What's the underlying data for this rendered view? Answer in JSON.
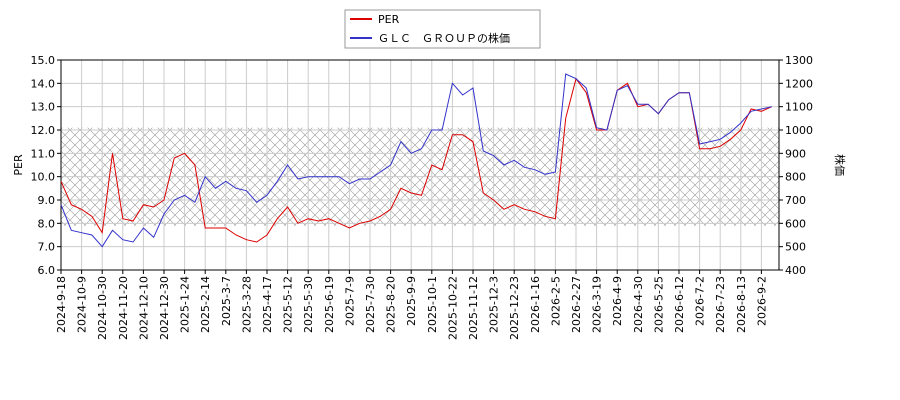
{
  "chart_data": {
    "type": "line",
    "y_label": "PER",
    "y2_label": "株価",
    "categories": [
      "2024-9-18",
      null,
      "2024-10-9",
      null,
      "2024-10-30",
      null,
      "2024-11-20",
      null,
      "2024-12-10",
      null,
      "2024-12-30",
      null,
      "2025-1-24",
      null,
      "2025-2-14",
      null,
      "2025-3-7",
      null,
      "2025-3-28",
      null,
      "2025-4-17",
      null,
      "2025-5-12",
      null,
      "2025-5-30",
      null,
      "2025-6-19",
      null,
      "2025-7-9",
      null,
      "2025-7-30",
      null,
      "2025-8-20",
      null,
      "2025-9-9",
      null,
      "2025-10-1",
      null,
      "2025-10-22",
      null,
      "2025-11-12",
      null,
      "2025-12-3",
      null,
      "2025-12-23",
      null,
      "2026-1-16",
      null,
      "2026-2-5",
      null,
      "2026-2-27",
      null,
      "2026-3-19",
      null,
      "2026-4-9",
      null,
      "2026-4-30",
      null,
      "2026-5-25",
      null,
      "2026-6-12",
      null,
      "2026-7-2",
      null,
      "2026-7-23",
      null,
      "2026-8-13",
      null,
      "2026-9-2",
      null
    ],
    "series": [
      {
        "name": "PER",
        "color": "#dd0000",
        "axis": "y",
        "values": [
          9.8,
          8.8,
          8.6,
          8.3,
          7.6,
          11.0,
          8.2,
          8.1,
          8.8,
          8.7,
          9.0,
          10.8,
          11.0,
          10.5,
          7.8,
          7.8,
          7.8,
          7.5,
          7.3,
          7.2,
          7.5,
          8.2,
          8.7,
          8.0,
          8.2,
          8.1,
          8.2,
          8.0,
          7.8,
          8.0,
          8.1,
          8.3,
          8.6,
          9.5,
          9.3,
          9.2,
          10.5,
          10.3,
          11.8,
          11.8,
          11.5,
          9.3,
          9.0,
          8.6,
          8.8,
          8.6,
          8.5,
          8.3,
          8.2,
          12.5,
          14.2,
          13.6,
          12.0,
          12.0,
          13.7,
          14.0,
          13.0,
          13.1,
          12.7,
          13.3,
          13.6,
          13.6,
          11.2,
          11.2,
          11.3,
          11.6,
          12.0,
          12.9,
          12.8,
          13.0
        ]
      },
      {
        "name": "ＧＬＣ　ＧＲＯＵＰの株価",
        "color": "#3333cc",
        "axis": "y2",
        "values": [
          680,
          570,
          560,
          550,
          500,
          570,
          530,
          520,
          580,
          540,
          640,
          700,
          720,
          690,
          800,
          750,
          780,
          750,
          740,
          690,
          720,
          780,
          850,
          790,
          800,
          800,
          800,
          800,
          770,
          790,
          790,
          820,
          850,
          950,
          900,
          920,
          1000,
          1000,
          1200,
          1150,
          1180,
          910,
          890,
          850,
          870,
          840,
          830,
          810,
          820,
          1240,
          1220,
          1180,
          1010,
          1000,
          1170,
          1190,
          1110,
          1110,
          1070,
          1130,
          1160,
          1160,
          940,
          950,
          960,
          990,
          1030,
          1080,
          1090,
          1100
        ]
      }
    ],
    "ylim": [
      6,
      15
    ],
    "yticks": [
      {
        "value": 6,
        "label": "6.0"
      },
      {
        "value": 7,
        "label": "7.0"
      },
      {
        "value": 8,
        "label": "8.0"
      },
      {
        "value": 9,
        "label": "9.0"
      },
      {
        "value": 10,
        "label": "10.0"
      },
      {
        "value": 11,
        "label": "11.0"
      },
      {
        "value": 12,
        "label": "12.0"
      },
      {
        "value": 13,
        "label": "13.0"
      },
      {
        "value": 14,
        "label": "14.0"
      },
      {
        "value": 15,
        "label": "15.0"
      }
    ],
    "y2lim": [
      400,
      1300
    ],
    "y2ticks": [
      400,
      500,
      600,
      700,
      800,
      900,
      1000,
      1100,
      1200,
      1300
    ],
    "shaded_range": [
      7.9,
      12.1
    ],
    "grid": true,
    "legend": "top"
  }
}
